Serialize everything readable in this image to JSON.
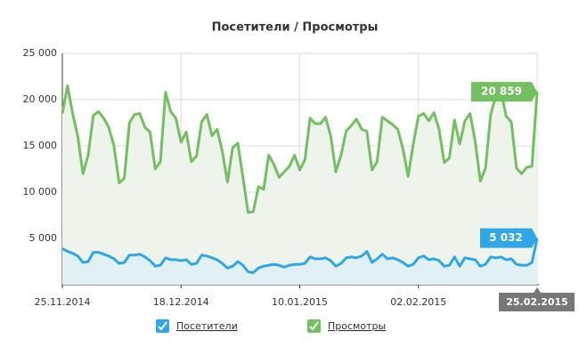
{
  "chart_data": {
    "type": "area-line",
    "title": "Посетители / Просмотры",
    "categories": [
      "25.11.2014",
      null,
      null,
      null,
      null,
      null,
      null,
      null,
      null,
      null,
      null,
      null,
      null,
      null,
      null,
      null,
      null,
      null,
      null,
      null,
      null,
      null,
      null,
      "18.12.2014",
      null,
      null,
      null,
      null,
      null,
      null,
      null,
      null,
      null,
      null,
      null,
      null,
      null,
      null,
      null,
      null,
      null,
      null,
      null,
      null,
      null,
      null,
      "10.01.2015",
      null,
      null,
      null,
      null,
      null,
      null,
      null,
      null,
      null,
      null,
      null,
      null,
      null,
      null,
      null,
      null,
      null,
      null,
      null,
      null,
      null,
      null,
      "02.02.2015",
      null,
      null,
      null,
      null,
      null,
      null,
      null,
      null,
      null,
      null,
      null,
      null,
      null,
      null,
      null,
      null,
      null,
      null,
      null,
      null,
      null,
      null,
      "25.02.2015"
    ],
    "series": [
      {
        "name": "Посетители",
        "color": "#2fa6e6",
        "fill": "#e1f0f3",
        "values": [
          3900,
          3600,
          3400,
          3100,
          2400,
          2500,
          3500,
          3500,
          3300,
          3100,
          2800,
          2300,
          2400,
          3200,
          3200,
          3300,
          3000,
          2600,
          2000,
          2100,
          2900,
          2700,
          2700,
          2600,
          2700,
          2200,
          2300,
          3200,
          3100,
          2900,
          2700,
          2300,
          1800,
          2000,
          2500,
          2100,
          1400,
          1300,
          1800,
          2000,
          2100,
          2200,
          2100,
          1900,
          2100,
          2200,
          2200,
          2300,
          3000,
          2800,
          2800,
          2900,
          2600,
          2000,
          2300,
          2900,
          3000,
          2900,
          3100,
          3600,
          2400,
          2800,
          3300,
          2800,
          2900,
          2700,
          2400,
          2000,
          2200,
          2900,
          3100,
          2700,
          2800,
          2600,
          2000,
          2100,
          3000,
          2000,
          2900,
          2800,
          2700,
          2000,
          2200,
          3000,
          2900,
          3000,
          2700,
          2800,
          2200,
          2100,
          2100,
          2400,
          5032
        ],
        "value_labels": {
          "92": "5 032"
        }
      },
      {
        "name": "Просмотры",
        "color": "#72c05f",
        "fill": "#eef3ec",
        "values": [
          18500,
          21500,
          18500,
          16000,
          12000,
          14000,
          18300,
          18700,
          18000,
          17000,
          15000,
          11000,
          11500,
          17500,
          18400,
          18500,
          17000,
          16500,
          12500,
          13300,
          20800,
          18700,
          18000,
          15400,
          16500,
          13300,
          13900,
          17600,
          18400,
          16100,
          16800,
          14400,
          11100,
          14800,
          15300,
          11600,
          7800,
          7900,
          10600,
          10300,
          14000,
          13000,
          11600,
          12200,
          12800,
          14000,
          12400,
          13500,
          18000,
          17400,
          17400,
          18100,
          16100,
          12200,
          14000,
          16600,
          17200,
          17900,
          16800,
          16600,
          12400,
          13300,
          18100,
          17700,
          17300,
          16800,
          14700,
          11700,
          15200,
          18200,
          18500,
          17700,
          18600,
          16800,
          13200,
          13700,
          17800,
          15200,
          17700,
          18500,
          15500,
          11200,
          12600,
          18400,
          20400,
          20900,
          18200,
          17600,
          12600,
          12000,
          12700,
          12800,
          20859
        ],
        "value_labels": {
          "92": "20 859"
        }
      }
    ],
    "ylim": [
      0,
      25000
    ],
    "yticks": [
      {
        "value": 5000,
        "label": "5 000"
      },
      {
        "value": 10000,
        "label": "10 000"
      },
      {
        "value": 15000,
        "label": "15 000"
      },
      {
        "value": 20000,
        "label": "20 000"
      },
      {
        "value": 25000,
        "label": "25 000"
      }
    ],
    "grid": true
  }
}
